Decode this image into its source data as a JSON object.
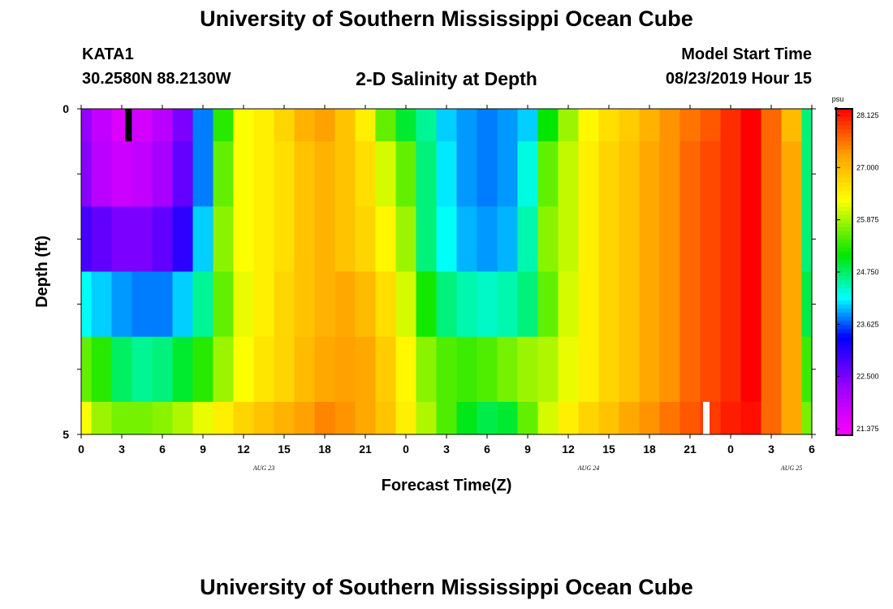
{
  "header": {
    "title": "University of Southern Mississippi Ocean Cube",
    "station_id": "KATA1",
    "station_coords": "30.2580N 88.2130W",
    "model_start_label": "Model Start Time",
    "model_start_value": "08/23/2019 Hour 15"
  },
  "footer": {
    "title": "University of Southern Mississippi Ocean Cube"
  },
  "chart_data": {
    "type": "heatmap",
    "title": "2-D Salinity at Depth",
    "xlabel": "Forecast Time(Z)",
    "ylabel": "Depth (ft)",
    "x_tick_labels": [
      "0",
      "3",
      "6",
      "9",
      "12",
      "15",
      "18",
      "21",
      "0",
      "3",
      "6",
      "9",
      "12",
      "15",
      "18",
      "21",
      "0",
      "3",
      "6"
    ],
    "x_date_labels": [
      {
        "text": "AUG 23",
        "at_hour": 13.5
      },
      {
        "text": "AUG 24",
        "at_hour": 37.5
      },
      {
        "text": "AUG 25",
        "at_hour": 52.5
      }
    ],
    "y_tick_labels": [
      "0",
      "5"
    ],
    "ylim": [
      0,
      5
    ],
    "xlim_hours": [
      0,
      54
    ],
    "depth_layer_edges": [
      0,
      0.5,
      1.5,
      2.5,
      3.5,
      4.5,
      5
    ],
    "colorbar": {
      "unit": "psu",
      "tick_labels": [
        "28.125",
        "27.000",
        "25.875",
        "24.750",
        "23.625",
        "22.500",
        "21.375"
      ],
      "range": [
        20.8,
        28.6
      ]
    },
    "grid": "off",
    "legend": "right colorbar",
    "series": [
      {
        "depth_layer": 1,
        "hours": [
          0,
          1.5,
          3,
          4.5,
          6,
          7.5,
          9,
          10.5,
          12,
          13.5,
          15,
          16.5,
          18,
          19.5,
          21,
          22.5,
          24,
          25.5,
          27,
          28.5,
          30,
          31.5,
          33,
          34.5,
          36,
          37.5,
          39,
          40.5,
          42,
          43.5,
          45,
          46.5,
          48,
          49.5,
          51,
          52.5,
          54
        ],
        "values": [
          22.0,
          21.5,
          21.2,
          21.3,
          21.6,
          22.2,
          23.6,
          25.3,
          26.4,
          26.6,
          26.9,
          27.3,
          27.5,
          27.1,
          26.6,
          25.6,
          24.9,
          24.5,
          23.9,
          23.7,
          23.6,
          23.7,
          23.9,
          25.1,
          25.9,
          26.5,
          26.8,
          27.0,
          27.3,
          27.6,
          27.8,
          28.0,
          28.3,
          28.6,
          27.9,
          27.2,
          24.6
        ]
      },
      {
        "depth_layer": 2,
        "hours": [
          0,
          1.5,
          3,
          4.5,
          6,
          7.5,
          9,
          10.5,
          12,
          13.5,
          15,
          16.5,
          18,
          19.5,
          21,
          22.5,
          24,
          25.5,
          27,
          28.5,
          30,
          31.5,
          33,
          34.5,
          36,
          37.5,
          39,
          40.5,
          42,
          43.5,
          45,
          46.5,
          48,
          49.5,
          51,
          52.5,
          54
        ],
        "values": [
          22.1,
          21.6,
          21.4,
          21.5,
          21.8,
          22.4,
          23.6,
          25.6,
          26.4,
          26.6,
          26.8,
          27.1,
          27.3,
          27.1,
          26.8,
          26.2,
          25.6,
          24.6,
          24.0,
          23.7,
          23.6,
          23.7,
          24.2,
          25.6,
          26.1,
          26.6,
          26.9,
          27.1,
          27.4,
          27.6,
          27.9,
          28.1,
          28.3,
          28.6,
          27.9,
          27.4,
          24.6
        ]
      },
      {
        "depth_layer": 3,
        "hours": [
          0,
          1.5,
          3,
          4.5,
          6,
          7.5,
          9,
          10.5,
          12,
          13.5,
          15,
          16.5,
          18,
          19.5,
          21,
          22.5,
          24,
          25.5,
          27,
          28.5,
          30,
          31.5,
          33,
          34.5,
          36,
          37.5,
          39,
          40.5,
          42,
          43.5,
          45,
          46.5,
          48,
          49.5,
          51,
          52.5,
          54
        ],
        "values": [
          22.6,
          22.4,
          22.2,
          22.2,
          22.4,
          22.8,
          23.9,
          25.8,
          26.4,
          26.6,
          26.8,
          27.1,
          27.3,
          27.1,
          26.9,
          26.5,
          25.9,
          24.6,
          24.1,
          23.8,
          23.7,
          23.8,
          24.4,
          25.8,
          26.1,
          26.6,
          26.9,
          27.1,
          27.4,
          27.6,
          27.9,
          28.1,
          28.3,
          28.6,
          27.9,
          27.4,
          24.6
        ]
      },
      {
        "depth_layer": 4,
        "hours": [
          0,
          1.5,
          3,
          4.5,
          6,
          7.5,
          9,
          10.5,
          12,
          13.5,
          15,
          16.5,
          18,
          19.5,
          21,
          22.5,
          24,
          25.5,
          27,
          28.5,
          30,
          31.5,
          33,
          34.5,
          36,
          37.5,
          39,
          40.5,
          42,
          43.5,
          45,
          46.5,
          48,
          49.5,
          51,
          52.5,
          54
        ],
        "values": [
          24.1,
          23.9,
          23.7,
          23.6,
          23.6,
          23.9,
          24.5,
          25.6,
          26.3,
          26.6,
          26.9,
          27.1,
          27.3,
          27.4,
          27.2,
          26.8,
          26.2,
          25.2,
          24.6,
          24.4,
          24.3,
          24.4,
          24.6,
          25.6,
          26.2,
          26.6,
          26.9,
          27.1,
          27.4,
          27.6,
          27.9,
          28.1,
          28.3,
          28.6,
          27.9,
          27.4,
          24.8
        ]
      },
      {
        "depth_layer": 5,
        "hours": [
          0,
          1.5,
          3,
          4.5,
          6,
          7.5,
          9,
          10.5,
          12,
          13.5,
          15,
          16.5,
          18,
          19.5,
          21,
          22.5,
          24,
          25.5,
          27,
          28.5,
          30,
          31.5,
          33,
          34.5,
          36,
          37.5,
          39,
          40.5,
          42,
          43.5,
          45,
          46.5,
          48,
          49.5,
          51,
          52.5,
          54
        ],
        "values": [
          25.6,
          25.3,
          24.7,
          24.5,
          24.6,
          24.9,
          25.3,
          25.9,
          26.4,
          26.7,
          26.9,
          27.2,
          27.4,
          27.5,
          27.4,
          27.0,
          26.5,
          25.8,
          25.5,
          25.4,
          25.5,
          25.7,
          25.9,
          26.0,
          26.3,
          26.6,
          26.9,
          27.1,
          27.4,
          27.6,
          27.9,
          28.1,
          28.3,
          28.6,
          27.9,
          27.4,
          25.4
        ]
      },
      {
        "depth_layer": 6,
        "hours": [
          0,
          1.5,
          3,
          4.5,
          6,
          7.5,
          9,
          10.5,
          12,
          13.5,
          15,
          16.5,
          18,
          19.5,
          21,
          22.5,
          24,
          25.5,
          27,
          28.5,
          30,
          31.5,
          33,
          34.5,
          36,
          37.5,
          39,
          40.5,
          42,
          43.5,
          45,
          46.5,
          48,
          49.5,
          51,
          52.5,
          54
        ],
        "values": [
          26.4,
          25.9,
          25.7,
          25.7,
          25.8,
          26.0,
          26.3,
          26.6,
          26.9,
          27.1,
          27.3,
          27.5,
          27.7,
          27.6,
          27.4,
          27.1,
          26.6,
          26.0,
          25.5,
          25.0,
          24.8,
          24.9,
          25.6,
          26.2,
          26.6,
          26.9,
          27.1,
          27.4,
          27.6,
          27.8,
          28.0,
          28.2,
          28.4,
          28.5,
          27.9,
          27.4,
          25.7
        ]
      }
    ],
    "markers": [
      {
        "color": "#000000",
        "hour": 3.5,
        "depth_from": 0,
        "depth_to": 0.5
      },
      {
        "color": "#ffffff",
        "hour": 46.2,
        "depth_from": 4.5,
        "depth_to": 5
      }
    ]
  }
}
